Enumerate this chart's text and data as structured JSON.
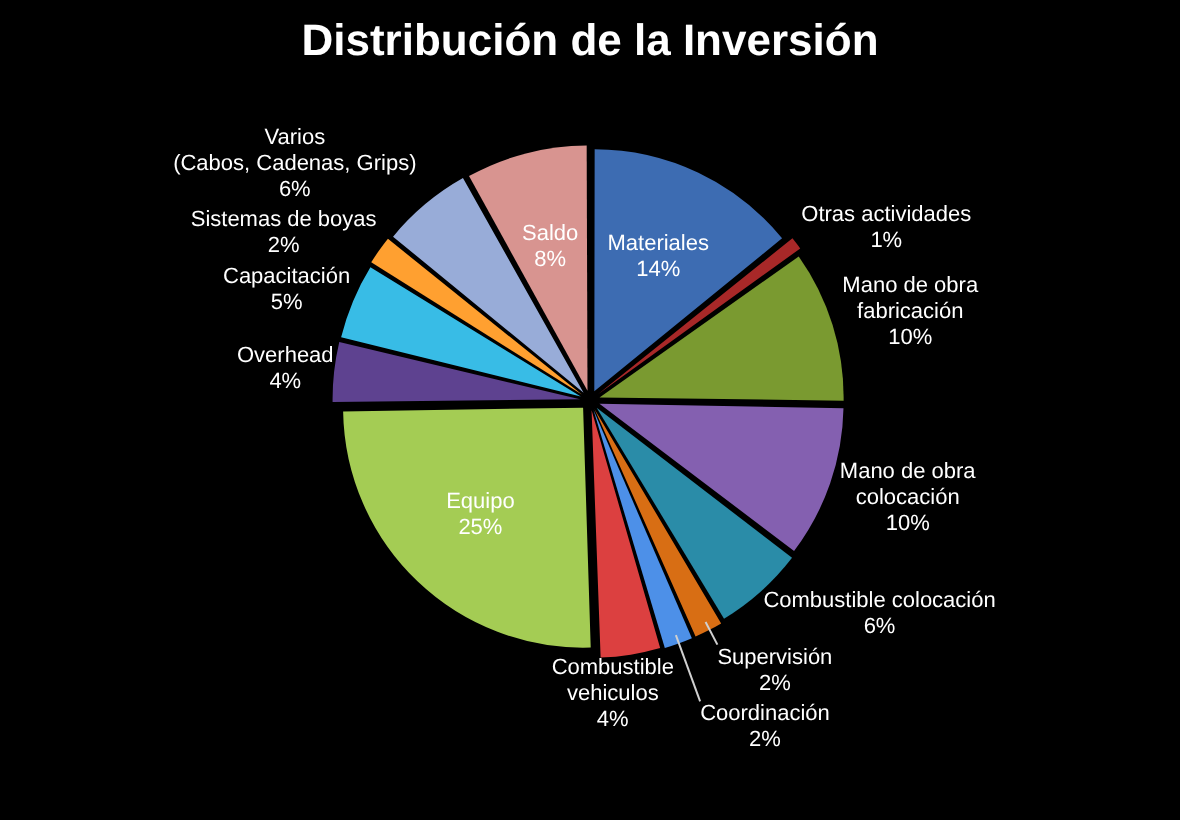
{
  "chart_data": {
    "type": "pie",
    "title": "Distribución de la Inversión",
    "categories": [
      "Materiales",
      "Otras actividades",
      "Mano de obra\nfabricación",
      "Mano de obra\ncolocación",
      "Combustible colocación",
      "Supervisión",
      "Coordinación",
      "Combustible vehiculos",
      "Equipo",
      "Overhead",
      "Capacitación",
      "Sistemas de boyas",
      "Varios\n(Cabos, Cadenas, Grips)",
      "Saldo"
    ],
    "values": [
      14,
      1,
      10,
      10,
      6,
      2,
      2,
      4,
      25,
      4,
      5,
      2,
      6,
      8
    ],
    "value_labels": [
      "14%",
      "1%",
      "10%",
      "10%",
      "6%",
      "2%",
      "2%",
      "4%",
      "25%",
      "4%",
      "5%",
      "2%",
      "6%",
      "8%"
    ],
    "colors": [
      "#3d6cb2",
      "#a82828",
      "#7a9a30",
      "#8460b0",
      "#2a8ca8",
      "#d86e14",
      "#4d90e8",
      "#dc4040",
      "#a4cc54",
      "#5e4290",
      "#38bce6",
      "#ffa030",
      "#98acd8",
      "#d89490"
    ]
  }
}
